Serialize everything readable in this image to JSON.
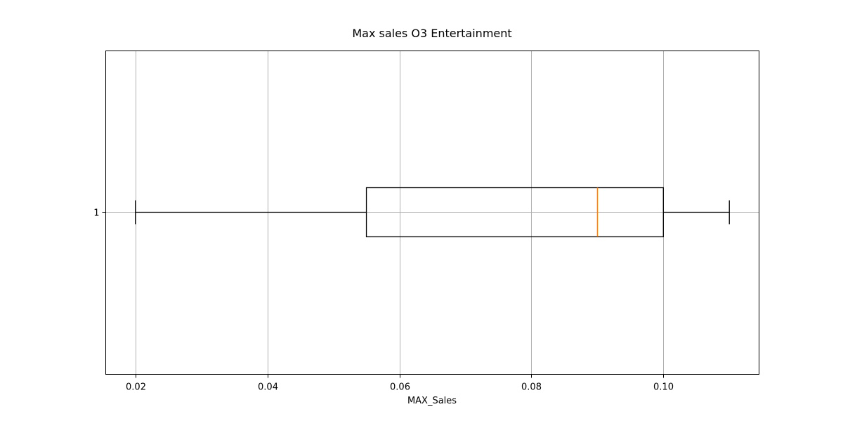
{
  "chart_data": {
    "type": "boxplot",
    "orientation": "horizontal",
    "title": "Max sales O3 Entertainment",
    "xlabel": "MAX_Sales",
    "ylabel": "",
    "xlim": [
      0.0155,
      0.1145
    ],
    "x_ticks": [
      0.02,
      0.04,
      0.06,
      0.08,
      0.1
    ],
    "x_tick_labels": [
      "0.02",
      "0.04",
      "0.06",
      "0.08",
      "0.10"
    ],
    "y_tick_labels": [
      "1"
    ],
    "grid": true,
    "boxes": [
      {
        "label": "1",
        "whisker_low": 0.02,
        "q1": 0.055,
        "median": 0.09,
        "q3": 0.1,
        "whisker_high": 0.11
      }
    ],
    "colors": {
      "box": "#000000",
      "median": "#ff7f0e",
      "grid": "#b0b0b0"
    }
  }
}
